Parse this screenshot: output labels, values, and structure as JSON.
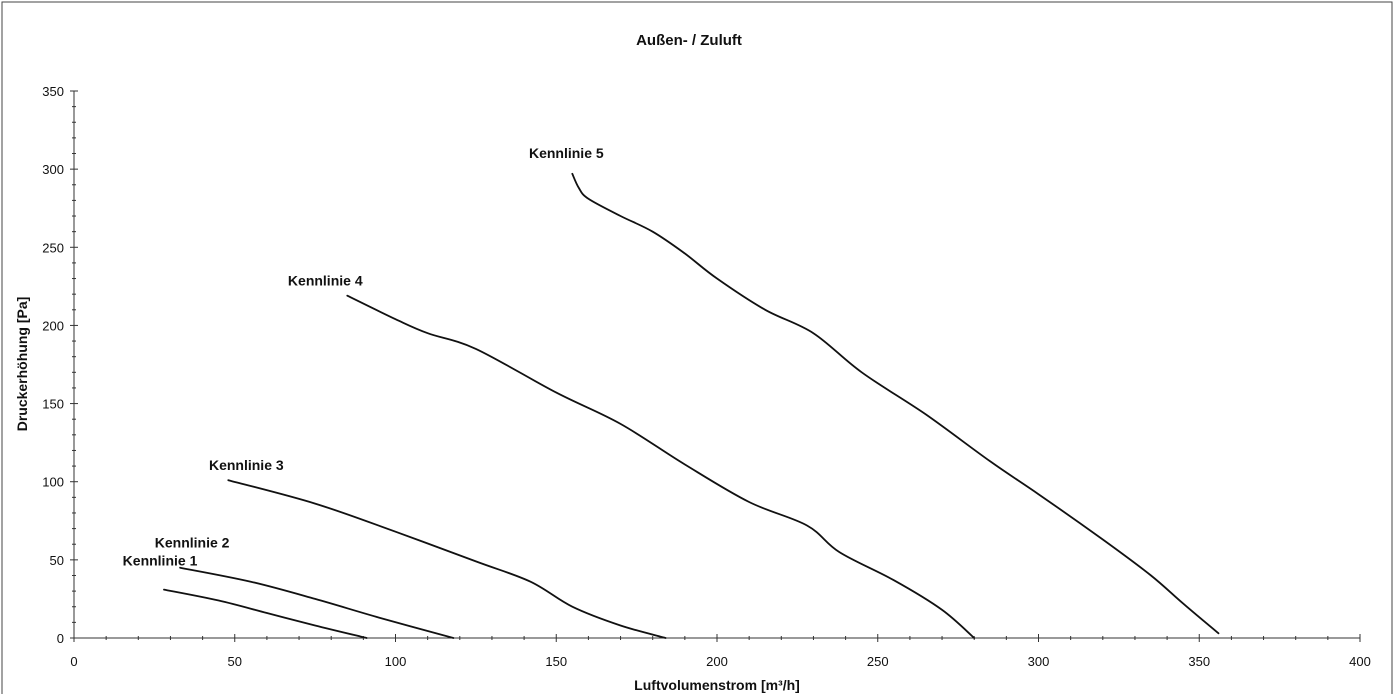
{
  "chart_data": {
    "type": "line",
    "title": "Außen- / Zuluft",
    "xlabel": "Luftvolumenstrom [m³/h]",
    "ylabel": "Druckerhöhung [Pa]",
    "xlim": [
      0,
      400
    ],
    "ylim": [
      0,
      350
    ],
    "xticks": [
      0,
      50,
      100,
      150,
      200,
      250,
      300,
      350,
      400
    ],
    "yticks": [
      0,
      50,
      100,
      150,
      200,
      250,
      300,
      350
    ],
    "grid": false,
    "series": [
      {
        "name": "Kennlinie 1",
        "x": [
          28,
          45,
          60,
          75,
          91
        ],
        "y": [
          31,
          24,
          16,
          8,
          0
        ]
      },
      {
        "name": "Kennlinie 2",
        "x": [
          33,
          55,
          75,
          95,
          118
        ],
        "y": [
          45,
          36,
          25,
          13,
          0
        ]
      },
      {
        "name": "Kennlinie 3",
        "x": [
          48,
          75,
          100,
          125,
          142,
          155,
          170,
          184
        ],
        "y": [
          101,
          86,
          68,
          49,
          36,
          20,
          8,
          0
        ]
      },
      {
        "name": "Kennlinie 4",
        "x": [
          85,
          100,
          110,
          125,
          150,
          170,
          190,
          210,
          228,
          238,
          255,
          270,
          280
        ],
        "y": [
          219,
          204,
          195,
          185,
          157,
          137,
          111,
          87,
          72,
          55,
          37,
          18,
          0
        ]
      },
      {
        "name": "Kennlinie 5",
        "x": [
          155,
          157,
          160,
          170,
          180,
          190,
          200,
          215,
          230,
          245,
          265,
          285,
          300,
          320,
          335,
          345,
          356
        ],
        "y": [
          297,
          288,
          281,
          270,
          260,
          246,
          230,
          210,
          195,
          170,
          143,
          113,
          92,
          63,
          40,
          22,
          3
        ]
      }
    ]
  }
}
